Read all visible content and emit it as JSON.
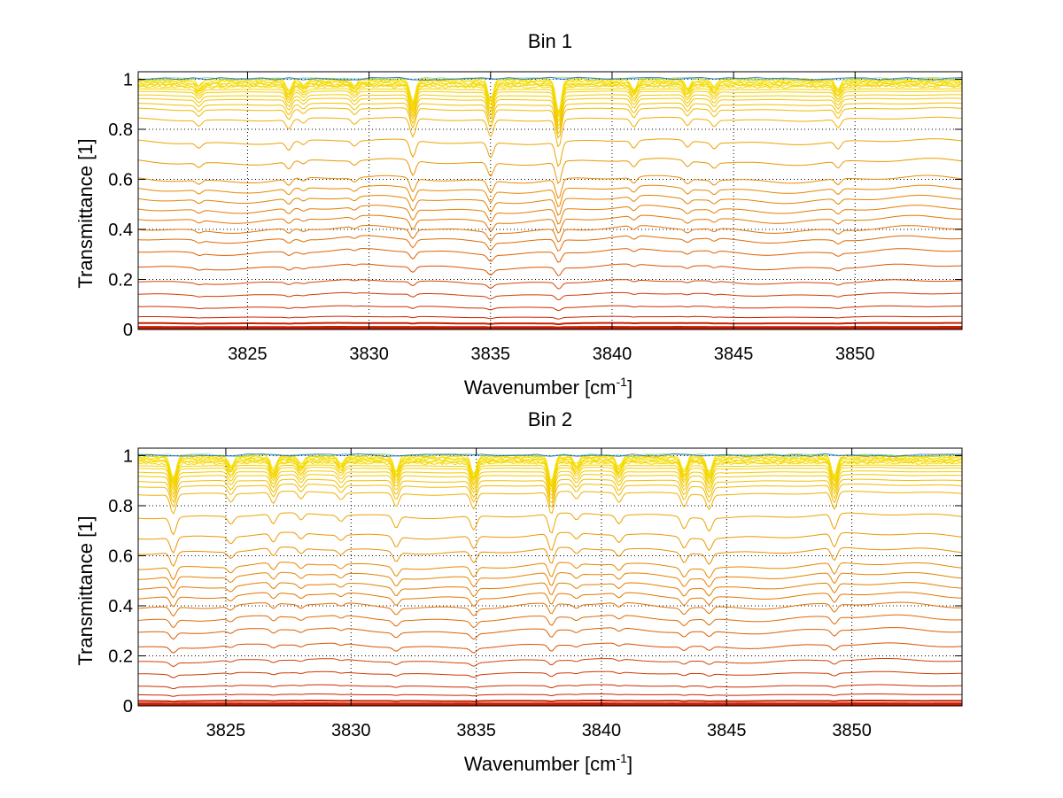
{
  "figure_background": "#ffffff",
  "chart_data": [
    {
      "type": "line",
      "title": "Bin 1",
      "xlabel": "Wavenumber [cm",
      "xlabel_superscript": "-1",
      "xlabel_suffix": "]",
      "ylabel": "Transmittance [1]",
      "xlim": [
        3820.5,
        3854.4
      ],
      "ylim": [
        0,
        1.03
      ],
      "xticks": [
        3825,
        3830,
        3835,
        3840,
        3845,
        3850
      ],
      "xtick_labels": [
        "3825",
        "3830",
        "3835",
        "3840",
        "3845",
        "3850"
      ],
      "yticks": [
        0,
        0.2,
        0.4,
        0.6,
        0.8,
        1
      ],
      "ytick_labels": [
        "0",
        "0.2",
        "0.4",
        "0.6",
        "0.8",
        "1"
      ],
      "grid": true,
      "grid_style": "dotted",
      "legend": "none",
      "levels": [
        1.0,
        0.995,
        0.99,
        0.985,
        0.98,
        0.975,
        0.97,
        0.96,
        0.95,
        0.935,
        0.92,
        0.9,
        0.88,
        0.84,
        0.75,
        0.67,
        0.6,
        0.56,
        0.52,
        0.48,
        0.44,
        0.4,
        0.36,
        0.31,
        0.25,
        0.19,
        0.14,
        0.09,
        0.05,
        0.025,
        0.01,
        0.005
      ],
      "absorption_lines": [
        {
          "x": 3823.0,
          "depth": 0.3
        },
        {
          "x": 3826.7,
          "depth": 0.5
        },
        {
          "x": 3827.3,
          "depth": 0.25
        },
        {
          "x": 3829.4,
          "depth": 0.3
        },
        {
          "x": 3831.8,
          "depth": 1.0
        },
        {
          "x": 3835.0,
          "depth": 0.9
        },
        {
          "x": 3837.8,
          "depth": 1.45
        },
        {
          "x": 3840.9,
          "depth": 0.45
        },
        {
          "x": 3843.1,
          "depth": 0.4
        },
        {
          "x": 3844.2,
          "depth": 0.35
        },
        {
          "x": 3849.3,
          "depth": 0.45
        }
      ]
    },
    {
      "type": "line",
      "title": "Bin 2",
      "xlabel": "Wavenumber [cm",
      "xlabel_superscript": "-1",
      "xlabel_suffix": "]",
      "ylabel": "Transmittance [1]",
      "xlim": [
        3821.5,
        3854.4
      ],
      "ylim": [
        0,
        1.03
      ],
      "xticks": [
        3825,
        3830,
        3835,
        3840,
        3845,
        3850
      ],
      "xtick_labels": [
        "3825",
        "3830",
        "3835",
        "3840",
        "3845",
        "3850"
      ],
      "yticks": [
        0,
        0.2,
        0.4,
        0.6,
        0.8,
        1
      ],
      "ytick_labels": [
        "0",
        "0.2",
        "0.4",
        "0.6",
        "0.8",
        "1"
      ],
      "grid": true,
      "grid_style": "dotted",
      "legend": "none",
      "levels": [
        1.0,
        0.995,
        0.99,
        0.985,
        0.98,
        0.975,
        0.97,
        0.96,
        0.95,
        0.935,
        0.92,
        0.9,
        0.88,
        0.85,
        0.76,
        0.68,
        0.62,
        0.56,
        0.52,
        0.48,
        0.44,
        0.4,
        0.35,
        0.3,
        0.24,
        0.18,
        0.13,
        0.08,
        0.045,
        0.02,
        0.01,
        0.005
      ],
      "absorption_lines": [
        {
          "x": 3822.9,
          "depth": 1.0
        },
        {
          "x": 3825.2,
          "depth": 0.45
        },
        {
          "x": 3826.9,
          "depth": 0.6
        },
        {
          "x": 3828.0,
          "depth": 0.4
        },
        {
          "x": 3829.6,
          "depth": 0.35
        },
        {
          "x": 3831.8,
          "depth": 0.7
        },
        {
          "x": 3834.9,
          "depth": 0.8
        },
        {
          "x": 3838.0,
          "depth": 1.15
        },
        {
          "x": 3839.0,
          "depth": 0.4
        },
        {
          "x": 3840.7,
          "depth": 0.5
        },
        {
          "x": 3843.3,
          "depth": 0.7
        },
        {
          "x": 3844.3,
          "depth": 0.75
        },
        {
          "x": 3849.3,
          "depth": 0.9
        }
      ]
    }
  ],
  "colors": {
    "low": "#c81a00",
    "mid": "#e06a00",
    "high": "#f0b000",
    "top": "#f5e000",
    "noise_green": "#30c040",
    "noise_cyan": "#20c8d8",
    "noise_blue": "#1030d0",
    "grid": "#000000",
    "axis": "#000000"
  }
}
